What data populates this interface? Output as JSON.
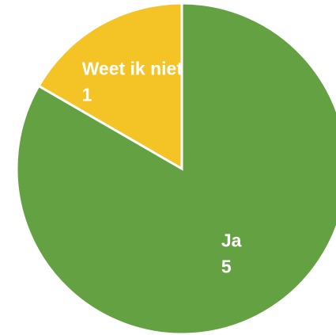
{
  "chart_data": {
    "type": "pie",
    "categories": [
      "Ja",
      "Weet ik niet"
    ],
    "values": [
      5,
      1
    ],
    "colors": [
      "#64a142",
      "#f4c325"
    ]
  }
}
